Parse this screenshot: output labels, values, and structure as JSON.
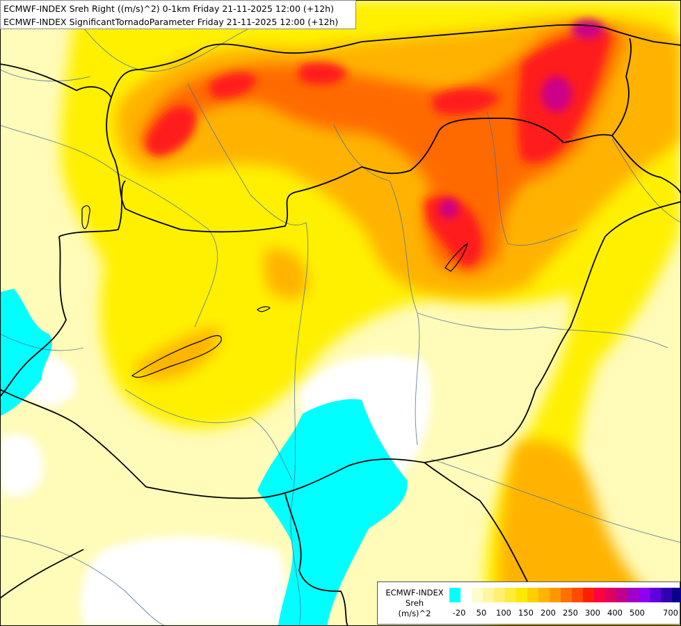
{
  "title": {
    "line1": "ECMWF-INDEX Sreh Right ((m/s)^2) 0-1km Friday 21-11-2025 12:00 (+12h)",
    "line2": "ECMWF-INDEX SignificantTornadoParameter Friday 21-11-2025 12:00 (+12h)"
  },
  "legend": {
    "model": "ECMWF-INDEX",
    "variable": "Sreh",
    "unit": "(m/s)^2",
    "colors": [
      "#00ffff",
      "#ffffff",
      "#fffccc",
      "#fff6a0",
      "#fff070",
      "#ffec3a",
      "#ffe800",
      "#ffcf00",
      "#ffb400",
      "#ff9800",
      "#ff7000",
      "#ff4a00",
      "#ff1e00",
      "#ff0040",
      "#e00060",
      "#c0008c",
      "#a000c8",
      "#9000f0",
      "#6000e0",
      "#3000b4",
      "#0a008c"
    ],
    "ticks": [
      "-20",
      "50",
      "100",
      "150",
      "200",
      "250",
      "300",
      "400",
      "500",
      "700"
    ]
  }
}
